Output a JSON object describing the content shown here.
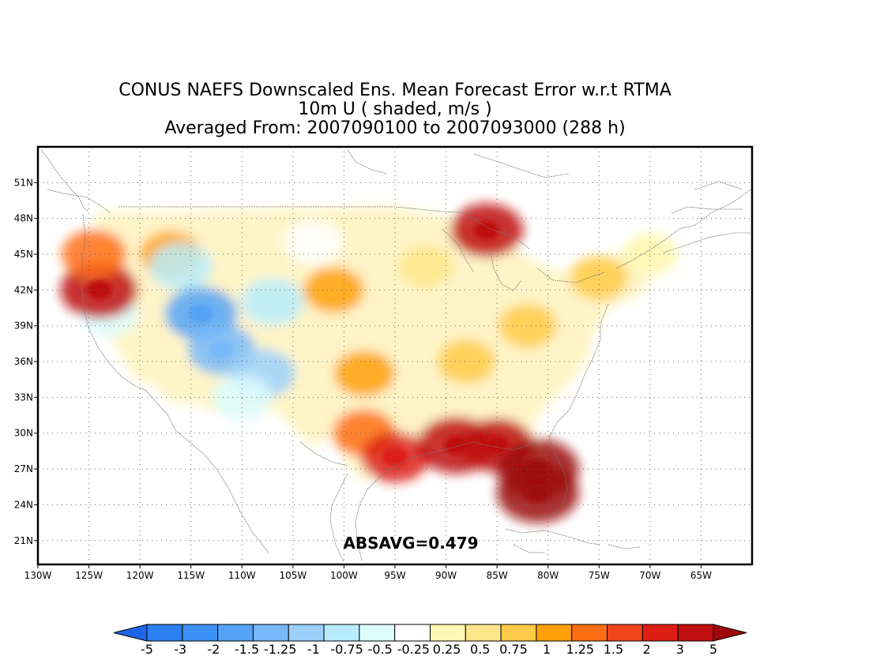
{
  "title": {
    "line1": "CONUS NAEFS Downscaled Ens. Mean Forecast Error w.r.t RTMA",
    "line2": "10m U ( shaded, m/s )",
    "line3": "Averaged From: 2007090100 to 2007093000 (288 h)"
  },
  "stat_label": "ABSAVG=0.479",
  "map": {
    "lon_range": [
      -130,
      -60
    ],
    "lat_range": [
      19,
      54
    ],
    "lon_ticks": [
      "130W",
      "125W",
      "120W",
      "115W",
      "110W",
      "105W",
      "100W",
      "95W",
      "90W",
      "85W",
      "80W",
      "75W",
      "70W",
      "65W"
    ],
    "lat_ticks": [
      "21N",
      "24N",
      "27N",
      "30N",
      "33N",
      "36N",
      "39N",
      "42N",
      "45N",
      "48N",
      "51N"
    ],
    "grid": "dotted"
  },
  "colorbar": {
    "labels": [
      "-5",
      "-3",
      "-2",
      "-1.5",
      "-1.25",
      "-1",
      "-0.75",
      "-0.5",
      "-0.25",
      "0.25",
      "0.5",
      "0.75",
      "1",
      "1.25",
      "1.5",
      "2",
      "3",
      "5"
    ],
    "colors": [
      "#1e64e6",
      "#2b7ff0",
      "#3c91f5",
      "#55a3f7",
      "#78b8f9",
      "#9bd0fb",
      "#b8ecfc",
      "#dcfcfd",
      "#ffffff",
      "#fff8b4",
      "#ffe68a",
      "#ffcb49",
      "#ffa00a",
      "#ff6e14",
      "#f0461a",
      "#dd1e14",
      "#c00f0f",
      "#9e0a0a"
    ]
  },
  "chart_data": {
    "type": "heatmap",
    "title": "CONUS NAEFS Downscaled Ens. Mean Forecast Error w.r.t RTMA",
    "subtitle": "10m U ( shaded, m/s ) | Averaged From: 2007090100 to 2007093000 (288 h)",
    "statistic": {
      "name": "ABSAVG",
      "value": 0.479
    },
    "xlim": [
      -130,
      -60
    ],
    "ylim": [
      19,
      54
    ],
    "levels": [
      -5,
      -3,
      -2,
      -1.5,
      -1.25,
      -1,
      -0.75,
      -0.5,
      -0.25,
      0.25,
      0.5,
      0.75,
      1,
      1.25,
      1.5,
      2,
      3,
      5
    ],
    "regions": [
      {
        "lon": -123,
        "lat": 40,
        "value": -0.6
      },
      {
        "lon": -124,
        "lat": 42,
        "value": 2.5
      },
      {
        "lon": -124.5,
        "lat": 45,
        "value": 1.2
      },
      {
        "lon": -117,
        "lat": 45,
        "value": 0.8
      },
      {
        "lon": -116,
        "lat": 44,
        "value": -1.0
      },
      {
        "lon": -114,
        "lat": 40,
        "value": -2.0
      },
      {
        "lon": -112,
        "lat": 37,
        "value": -1.5
      },
      {
        "lon": -108,
        "lat": 35,
        "value": -1.25
      },
      {
        "lon": -110,
        "lat": 33,
        "value": -0.75
      },
      {
        "lon": -107,
        "lat": 41,
        "value": -1.0
      },
      {
        "lon": -103,
        "lat": 46,
        "value": -0.5
      },
      {
        "lon": -101,
        "lat": 42,
        "value": 0.75
      },
      {
        "lon": -98,
        "lat": 35,
        "value": 0.75
      },
      {
        "lon": -98,
        "lat": 30,
        "value": 1.0
      },
      {
        "lon": -95,
        "lat": 28,
        "value": 1.5
      },
      {
        "lon": -89,
        "lat": 29,
        "value": 2.5
      },
      {
        "lon": -85,
        "lat": 29,
        "value": 2.0
      },
      {
        "lon": -81,
        "lat": 27,
        "value": 3.0
      },
      {
        "lon": -81,
        "lat": 25,
        "value": 3.0
      },
      {
        "lon": -86,
        "lat": 47,
        "value": 2.0
      },
      {
        "lon": -88,
        "lat": 36,
        "value": 0.5
      },
      {
        "lon": -82,
        "lat": 39,
        "value": 0.5
      },
      {
        "lon": -92,
        "lat": 44,
        "value": 0.25
      },
      {
        "lon": -75,
        "lat": 43,
        "value": 0.5
      },
      {
        "lon": -70,
        "lat": 45,
        "value": -0.25
      }
    ]
  }
}
